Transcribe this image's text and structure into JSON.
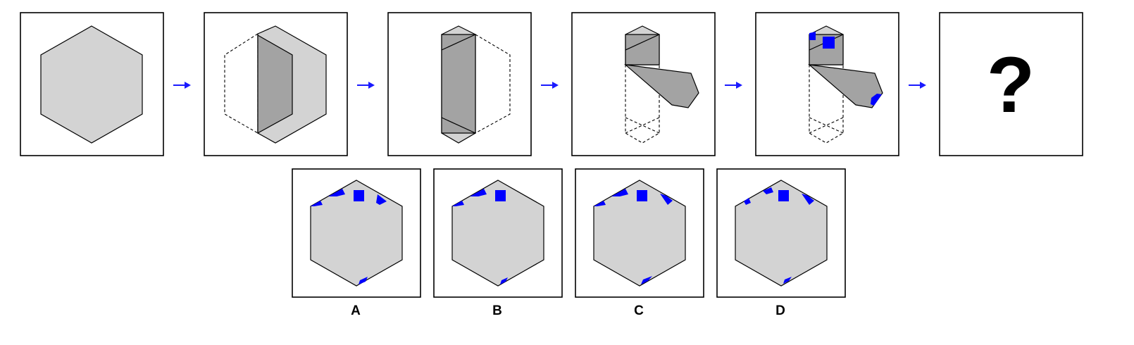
{
  "question_mark": "?",
  "options": [
    {
      "label": "A"
    },
    {
      "label": "B"
    },
    {
      "label": "C"
    },
    {
      "label": "D"
    }
  ],
  "colors": {
    "paper": "#d3d3d3",
    "folded": "#a3a3a3",
    "mark": "#0000ff",
    "arrow": "#1a1aff"
  }
}
